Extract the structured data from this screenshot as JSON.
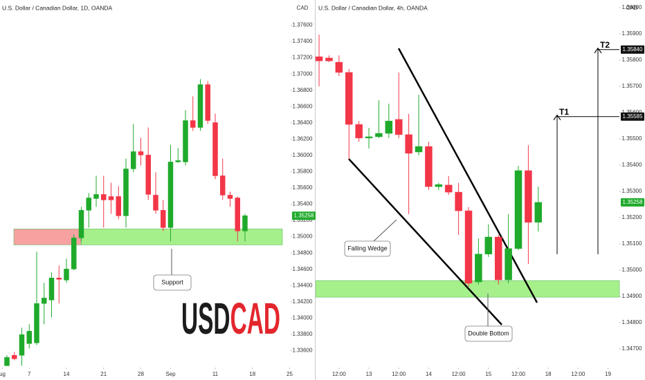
{
  "chart_data": [
    {
      "type": "candlestick",
      "title": "U.S. Dollar / Canadian Dollar, 1D, OANDA",
      "axis_label": "CAD",
      "up_color": "#1faa2b",
      "down_color": "#f23648",
      "open": [
        1.33414,
        1.33542,
        1.33542,
        1.33686,
        1.33695,
        1.34179,
        1.34221,
        1.34493,
        1.34467,
        1.34603,
        1.34985,
        1.35325,
        1.35469,
        1.3552,
        1.35494,
        1.35494,
        1.35257,
        1.35834,
        1.36046,
        1.36004,
        1.35511,
        1.35325,
        1.35112,
        1.35919,
        1.35919,
        1.36428,
        1.36343,
        1.3687,
        1.36403,
        1.35749,
        1.35511,
        1.35477,
        1.3507
      ],
      "high": [
        1.33542,
        1.33584,
        1.33881,
        1.33924,
        1.34815,
        1.34433,
        1.34561,
        1.34645,
        1.3473,
        1.35028,
        1.35367,
        1.35537,
        1.35749,
        1.35749,
        1.35664,
        1.35622,
        1.35961,
        1.36386,
        1.36216,
        1.36343,
        1.35792,
        1.35452,
        1.36131,
        1.36089,
        1.36556,
        1.36726,
        1.36938,
        1.36912,
        1.36513,
        1.35961,
        1.35554,
        1.35494,
        1.35282
      ],
      "low": [
        1.33414,
        1.33482,
        1.33414,
        1.33627,
        1.33669,
        1.33924,
        1.34009,
        1.34179,
        1.34433,
        1.34586,
        1.34943,
        1.35112,
        1.35367,
        1.35112,
        1.35282,
        1.35214,
        1.35112,
        1.35792,
        1.35877,
        1.35452,
        1.35282,
        1.3507,
        1.34943,
        1.3591,
        1.35877,
        1.36301,
        1.36301,
        1.36386,
        1.35707,
        1.35452,
        1.35367,
        1.34943,
        1.34943
      ],
      "close": [
        1.33516,
        1.33499,
        1.33796,
        1.33839,
        1.34179,
        1.34246,
        1.34493,
        1.34476,
        1.34603,
        1.34985,
        1.35325,
        1.35477,
        1.3552,
        1.35452,
        1.35452,
        1.35257,
        1.35834,
        1.36046,
        1.36004,
        1.3552,
        1.35325,
        1.35112,
        1.35919,
        1.35936,
        1.36428,
        1.36343,
        1.3687,
        1.36428,
        1.35749,
        1.35511,
        1.35469,
        1.3507,
        1.35258
      ],
      "xlim": [
        -0.93,
        38.14
      ],
      "xticks": [
        {
          "value": -0.6,
          "label": "ug"
        },
        {
          "value": 3,
          "label": "7"
        },
        {
          "value": 8,
          "label": "14"
        },
        {
          "value": 13,
          "label": "21"
        },
        {
          "value": 18,
          "label": "28"
        },
        {
          "value": 22,
          "label": "Sep"
        },
        {
          "value": 28,
          "label": "11"
        },
        {
          "value": 33,
          "label": "18"
        },
        {
          "value": 38,
          "label": "25"
        }
      ],
      "ylim": [
        1.334,
        1.3791
      ],
      "yticks": [
        {
          "value": 1.376,
          "label": "1.37600"
        },
        {
          "value": 1.374,
          "label": "1.37400"
        },
        {
          "value": 1.372,
          "label": "1.37200"
        },
        {
          "value": 1.37,
          "label": "1.37000"
        },
        {
          "value": 1.368,
          "label": "1.36800"
        },
        {
          "value": 1.366,
          "label": "1.36600"
        },
        {
          "value": 1.364,
          "label": "1.36400"
        },
        {
          "value": 1.362,
          "label": "1.36200"
        },
        {
          "value": 1.36,
          "label": "1.36000"
        },
        {
          "value": 1.358,
          "label": "1.35800"
        },
        {
          "value": 1.356,
          "label": "1.35600"
        },
        {
          "value": 1.354,
          "label": "1.35400"
        },
        {
          "value": 1.352,
          "label": "1.35200"
        },
        {
          "value": 1.35,
          "label": "1.35000"
        },
        {
          "value": 1.348,
          "label": "1.34800"
        },
        {
          "value": 1.346,
          "label": "1.34600"
        },
        {
          "value": 1.344,
          "label": "1.34400"
        },
        {
          "value": 1.342,
          "label": "1.34200"
        },
        {
          "value": 1.34,
          "label": "1.34000"
        },
        {
          "value": 1.338,
          "label": "1.33800"
        },
        {
          "value": 1.336,
          "label": "1.33600"
        }
      ],
      "last_price": {
        "value": 1.35258,
        "label": "1.35258"
      },
      "zones": [
        {
          "from": 1.349,
          "to": 1.35095,
          "color": "#a6f08c"
        },
        {
          "from": 1.349,
          "to": 1.35095,
          "color": "#f7a1a1"
        }
      ],
      "annotations": [
        "Support"
      ],
      "watermark": [
        "USD",
        "CAD"
      ]
    },
    {
      "type": "candlestick",
      "title": "U.S. Dollar / Canadian Dollar, 4h, OANDA",
      "axis_label": "CAD",
      "up_color": "#1faa2b",
      "down_color": "#f23648",
      "open": [
        1.35813,
        1.35808,
        1.35792,
        1.35753,
        1.35555,
        1.35503,
        1.35508,
        1.35521,
        1.35574,
        1.35516,
        1.3545,
        1.35471,
        1.35318,
        1.35324,
        1.35297,
        1.35226,
        1.34955,
        1.35061,
        1.35126,
        1.34963,
        1.35082,
        1.35379,
        1.35182
      ],
      "high": [
        1.35897,
        1.35818,
        1.35818,
        1.35766,
        1.35568,
        1.35542,
        1.35647,
        1.35634,
        1.35753,
        1.35595,
        1.35668,
        1.35489,
        1.35332,
        1.35358,
        1.35332,
        1.3524,
        1.35121,
        1.35174,
        1.35134,
        1.35213,
        1.35397,
        1.35476,
        1.35318
      ],
      "low": [
        1.357,
        1.35792,
        1.35739,
        1.35424,
        1.35489,
        1.35463,
        1.35503,
        1.35503,
        1.35503,
        1.35213,
        1.35437,
        1.35305,
        1.35305,
        1.35287,
        1.35134,
        1.34937,
        1.34945,
        1.3505,
        1.34945,
        1.3495,
        1.35076,
        1.35024,
        1.35147
      ],
      "close": [
        1.35797,
        1.35797,
        1.35753,
        1.35555,
        1.35503,
        1.35508,
        1.35521,
        1.35568,
        1.35516,
        1.35445,
        1.35471,
        1.35318,
        1.35326,
        1.35297,
        1.35226,
        1.3495,
        1.35061,
        1.35126,
        1.34963,
        1.35082,
        1.35379,
        1.35182,
        1.35258
      ],
      "xlim": [
        -0.42,
        30.14
      ],
      "xticks": [
        {
          "value": 2,
          "label": "12:00"
        },
        {
          "value": 5,
          "label": "13"
        },
        {
          "value": 8,
          "label": "12:00"
        },
        {
          "value": 11,
          "label": "14"
        },
        {
          "value": 14,
          "label": "12:00"
        },
        {
          "value": 17,
          "label": "15"
        },
        {
          "value": 20,
          "label": "12:00"
        },
        {
          "value": 23,
          "label": "18"
        },
        {
          "value": 26,
          "label": "12:00"
        },
        {
          "value": 29,
          "label": "19"
        }
      ],
      "ylim": [
        1.34634,
        1.36029
      ],
      "yticks": [
        {
          "value": 1.36,
          "label": "1.36000"
        },
        {
          "value": 1.359,
          "label": "1.35900"
        },
        {
          "value": 1.358,
          "label": "1.35800"
        },
        {
          "value": 1.357,
          "label": "1.35700"
        },
        {
          "value": 1.356,
          "label": "1.35600"
        },
        {
          "value": 1.355,
          "label": "1.35500"
        },
        {
          "value": 1.354,
          "label": "1.35400"
        },
        {
          "value": 1.353,
          "label": "1.35300"
        },
        {
          "value": 1.352,
          "label": "1.35200"
        },
        {
          "value": 1.351,
          "label": "1.35100"
        },
        {
          "value": 1.35,
          "label": "1.35000"
        },
        {
          "value": 1.349,
          "label": "1.34900"
        },
        {
          "value": 1.348,
          "label": "1.34800"
        },
        {
          "value": 1.347,
          "label": "1.34700"
        }
      ],
      "last_price": {
        "value": 1.35258,
        "label": "1.35258"
      },
      "zones": [
        {
          "from": 1.34897,
          "to": 1.3496,
          "color": "#a6f08c"
        }
      ],
      "annotations": [
        "Falling Wedge",
        "Double Bottom"
      ],
      "targets": [
        {
          "name": "T1",
          "value": 1.35585,
          "value_label": "1.35585"
        },
        {
          "name": "T2",
          "value": 1.3584,
          "value_label": "1.35840"
        }
      ]
    }
  ]
}
